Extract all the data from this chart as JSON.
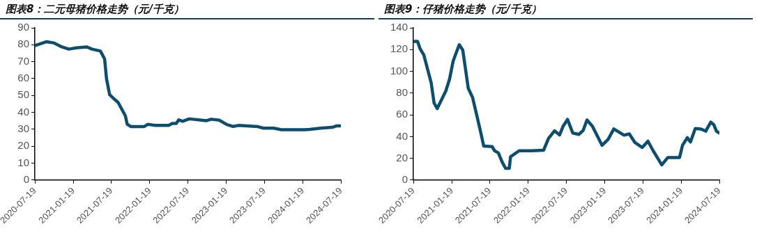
{
  "chart_data": [
    {
      "type": "line",
      "title": "图表8：二元母猪价格走势（元/千克）",
      "grid": false,
      "legend": false,
      "marker": "none",
      "line_style": "solid",
      "xlim": [
        "2020-07-19",
        "2024-07-19"
      ],
      "xticks": [
        "2020-07-19",
        "2021-01-19",
        "2021-07-19",
        "2022-01-19",
        "2022-07-19",
        "2023-01-19",
        "2023-07-19",
        "2024-01-19",
        "2024-07-19"
      ],
      "ylim": [
        0,
        90
      ],
      "yticks": [
        0,
        10,
        20,
        30,
        40,
        50,
        60,
        70,
        80,
        90
      ],
      "series": [
        {
          "color": "#0d4d6e",
          "x": [
            "2020-07-19",
            "2020-09-13",
            "2020-10-20",
            "2020-11-20",
            "2020-12-28",
            "2021-02-03",
            "2021-03-24",
            "2021-04-18",
            "2021-05-28",
            "2021-06-17",
            "2021-06-26",
            "2021-07-11",
            "2021-08-01",
            "2021-08-20",
            "2021-09-24",
            "2021-10-03",
            "2021-10-21",
            "2021-12-22",
            "2022-01-10",
            "2022-02-10",
            "2022-04-18",
            "2022-05-06",
            "2022-05-25",
            "2022-06-06",
            "2022-06-25",
            "2022-07-26",
            "2022-10-15",
            "2022-11-08",
            "2022-12-16",
            "2023-01-22",
            "2023-02-21",
            "2023-03-18",
            "2023-06-19",
            "2023-07-15",
            "2023-09-02",
            "2023-10-09",
            "2024-01-29",
            "2024-02-23",
            "2024-04-13",
            "2024-06-08",
            "2024-06-27",
            "2024-07-19"
          ],
          "values": [
            79.5,
            81.8,
            81,
            79,
            77.4,
            78.2,
            78.7,
            77.4,
            76.3,
            71.6,
            60,
            50.5,
            48,
            46,
            38,
            33,
            31.6,
            31.6,
            33,
            32.4,
            32.3,
            33.5,
            33.5,
            35.6,
            34.8,
            36.2,
            35.1,
            36,
            35.4,
            32.8,
            31.7,
            32.3,
            31.6,
            30.7,
            30.7,
            29.8,
            29.8,
            30,
            30.7,
            31.2,
            32,
            32
          ]
        }
      ]
    },
    {
      "type": "line",
      "title": "图表9：仔猪价格走势（元/千克）",
      "grid": false,
      "legend": false,
      "marker": "none",
      "line_style": "solid",
      "xlim": [
        "2020-07-19",
        "2024-07-19"
      ],
      "xticks": [
        "2020-07-19",
        "2021-01-19",
        "2021-07-19",
        "2022-01-19",
        "2022-07-19",
        "2023-01-19",
        "2023-07-19",
        "2024-01-19",
        "2024-07-19"
      ],
      "ylim": [
        0,
        140
      ],
      "yticks": [
        0,
        20,
        40,
        60,
        80,
        100,
        120,
        140
      ],
      "series": [
        {
          "color": "#0d4d6e",
          "x": [
            "2020-07-19",
            "2020-08-08",
            "2020-08-20",
            "2020-09-07",
            "2020-10-12",
            "2020-10-26",
            "2020-11-10",
            "2020-12-21",
            "2021-01-08",
            "2021-01-25",
            "2021-02-23",
            "2021-03-12",
            "2021-04-07",
            "2021-04-28",
            "2021-06-02",
            "2021-06-20",
            "2021-07-30",
            "2021-08-11",
            "2021-08-29",
            "2021-09-15",
            "2021-10-02",
            "2021-10-20",
            "2021-10-26",
            "2021-12-06",
            "2022-02-03",
            "2022-04-02",
            "2022-04-25",
            "2022-05-24",
            "2022-06-17",
            "2022-07-04",
            "2022-07-25",
            "2022-08-19",
            "2022-09-17",
            "2022-10-08",
            "2022-10-26",
            "2022-11-21",
            "2023-01-06",
            "2023-02-04",
            "2023-03-03",
            "2023-04-21",
            "2023-05-16",
            "2023-06-12",
            "2023-07-17",
            "2023-08-13",
            "2023-09-07",
            "2023-09-29",
            "2023-10-18",
            "2023-11-16",
            "2023-12-21",
            "2024-01-11",
            "2024-01-25",
            "2024-02-17",
            "2024-03-03",
            "2024-03-26",
            "2024-04-22",
            "2024-05-15",
            "2024-06-08",
            "2024-06-23",
            "2024-07-05",
            "2024-07-19"
          ],
          "values": [
            127.5,
            127.5,
            120.8,
            115,
            89.5,
            70.8,
            65.8,
            82,
            93,
            109.5,
            124.5,
            119.5,
            84.5,
            75.8,
            47,
            31.3,
            30.8,
            27,
            25,
            17,
            10.8,
            10.8,
            21.5,
            27,
            27,
            27.5,
            38.3,
            45.3,
            41.5,
            49.5,
            55.8,
            43.3,
            42,
            45.8,
            55.3,
            49.5,
            32,
            37.5,
            47,
            41.3,
            42.5,
            34.5,
            30,
            35.8,
            27,
            20,
            14,
            20.8,
            20.8,
            20.8,
            32,
            39,
            35,
            47.5,
            47,
            45,
            53.3,
            50.8,
            45,
            43.3
          ]
        }
      ]
    }
  ]
}
